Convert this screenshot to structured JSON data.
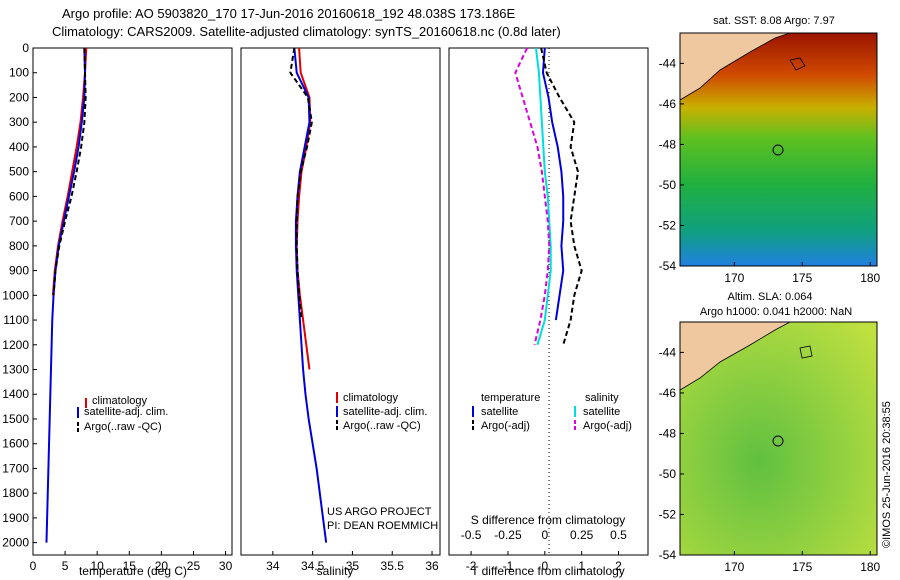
{
  "header": {
    "line1": "Argo profile: AO 5903820_170 17-Jun-2016 20160618_192 48.038S 173.186E",
    "line2": "Climatology: CARS2009. Satellite-adjusted climatology: synTS_20160618.nc (0.8d later)"
  },
  "colors": {
    "climatology": "#e00000",
    "satellite_temp": "#0000dd",
    "argo": "#000000",
    "satellite_sal": "#00dddd",
    "argo_sal": "#dd00dd"
  },
  "chart_data": [
    {
      "type": "line",
      "xlabel": "temperature (deg C)",
      "ylabel": "",
      "xlim": [
        0,
        31
      ],
      "ylim": [
        2050,
        0
      ],
      "xticks": [
        "0",
        "5",
        "10",
        "15",
        "20",
        "25",
        "30"
      ],
      "yticks": [
        "0",
        "100",
        "200",
        "300",
        "400",
        "500",
        "600",
        "700",
        "800",
        "900",
        "1000",
        "1100",
        "1200",
        "1300",
        "1400",
        "1500",
        "1600",
        "1700",
        "1800",
        "1900",
        "2000"
      ],
      "legend": [
        "climatology",
        "satellite-adj. clim.",
        "Argo(..raw -QC)"
      ],
      "series": [
        {
          "name": "climatology",
          "x": [
            8.3,
            8.1,
            7.8,
            7.4,
            6.8,
            6.1,
            5.4,
            4.6,
            3.9,
            3.4,
            3.1
          ],
          "y": [
            0,
            100,
            200,
            300,
            400,
            500,
            600,
            700,
            800,
            900,
            1000
          ]
        },
        {
          "name": "satellite-adj. clim.",
          "x": [
            8.0,
            8.1,
            8.0,
            7.6,
            7.1,
            6.4,
            5.6,
            4.8,
            4.0,
            3.5,
            3.2,
            3.0,
            2.9,
            2.8,
            2.7,
            2.6,
            2.5,
            2.4,
            2.3,
            2.2,
            2.1
          ],
          "y": [
            0,
            100,
            200,
            300,
            400,
            500,
            600,
            700,
            800,
            900,
            1000,
            1100,
            1200,
            1300,
            1400,
            1500,
            1600,
            1700,
            1800,
            1900,
            2000
          ]
        },
        {
          "name": "Argo(..raw -QC)",
          "x": [
            8.0,
            8.1,
            8.2,
            8.0,
            7.5,
            6.8,
            6.0,
            5.0,
            4.1,
            3.5,
            3.2
          ],
          "y": [
            0,
            100,
            200,
            300,
            400,
            500,
            600,
            700,
            800,
            900,
            1000
          ]
        }
      ]
    },
    {
      "type": "line",
      "xlabel": "salinity",
      "xlim": [
        33.6,
        36.1
      ],
      "ylim": [
        2050,
        0
      ],
      "xticks": [
        "34",
        "34.5",
        "35",
        "35.5",
        "36"
      ],
      "legend": [
        "climatology",
        "satellite-adj. clim.",
        "Argo(..raw -QC)"
      ],
      "annotation": [
        "US ARGO PROJECT",
        "PI: DEAN ROEMMICH"
      ],
      "series": [
        {
          "name": "climatology",
          "x": [
            34.33,
            34.35,
            34.46,
            34.47,
            34.42,
            34.36,
            34.33,
            34.31,
            34.3,
            34.31,
            34.34,
            34.38,
            34.42,
            34.46
          ],
          "y": [
            0,
            100,
            200,
            300,
            400,
            500,
            600,
            700,
            800,
            900,
            1000,
            1100,
            1200,
            1300
          ]
        },
        {
          "name": "satellite-adj. clim.",
          "x": [
            34.27,
            34.3,
            34.45,
            34.46,
            34.4,
            34.34,
            34.31,
            34.29,
            34.29,
            34.3,
            34.32,
            34.34,
            34.36,
            34.38,
            34.41,
            34.45,
            34.5,
            34.55,
            34.59,
            34.63,
            34.67
          ],
          "y": [
            0,
            100,
            200,
            300,
            400,
            500,
            600,
            700,
            800,
            900,
            1000,
            1100,
            1200,
            1300,
            1400,
            1500,
            1600,
            1700,
            1800,
            1900,
            2000
          ]
        },
        {
          "name": "Argo(..raw -QC)",
          "x": [
            34.27,
            34.22,
            34.44,
            34.49,
            34.43,
            34.35,
            34.31,
            34.3,
            34.3,
            34.31,
            34.33,
            34.36
          ],
          "y": [
            0,
            100,
            200,
            300,
            400,
            500,
            600,
            700,
            800,
            900,
            1000,
            1100
          ]
        }
      ]
    },
    {
      "type": "line",
      "xlabel": "T difference from climatology",
      "xlabel2": "S difference from climatology",
      "xlim": [
        -2.6,
        2.8
      ],
      "ylim": [
        2050,
        0
      ],
      "xticks": [
        "-2",
        "-1",
        "0",
        "1",
        "2"
      ],
      "xticks2": [
        "-0.5",
        "-0.25",
        "0",
        "0.25",
        "0.5"
      ],
      "legend_headers": [
        "temperature",
        "salinity"
      ],
      "legend": [
        "satellite",
        "Argo(-adj)",
        "satellite",
        "Argo(-adj)"
      ],
      "series": [
        {
          "name": "temperature satellite",
          "x": [
            0,
            -0.05,
            0.1,
            0.2,
            0.35,
            0.45,
            0.5,
            0.5,
            0.45,
            0.5,
            0.4,
            0.3
          ],
          "y": [
            0,
            100,
            200,
            300,
            400,
            500,
            600,
            700,
            800,
            900,
            1000,
            1100
          ]
        },
        {
          "name": "temperature Argo(-adj)",
          "x": [
            -0.1,
            0.05,
            0.4,
            0.8,
            0.7,
            0.9,
            0.8,
            0.7,
            0.8,
            1.0,
            0.8,
            0.7,
            0.5
          ],
          "y": [
            0,
            100,
            200,
            300,
            400,
            500,
            600,
            700,
            800,
            900,
            1000,
            1100,
            1200
          ]
        },
        {
          "name": "salinity satellite",
          "x": [
            -0.06,
            -0.04,
            -0.03,
            -0.02,
            -0.01,
            0,
            0.02,
            0.03,
            0.04,
            0.04,
            0.02,
            0,
            -0.05
          ],
          "y": [
            0,
            100,
            200,
            300,
            400,
            500,
            600,
            700,
            800,
            900,
            1000,
            1100,
            1200
          ]
        },
        {
          "name": "salinity Argo(-adj)",
          "x": [
            -0.12,
            -0.2,
            -0.15,
            -0.1,
            -0.05,
            -0.02,
            0,
            0.02,
            0.03,
            0.02,
            0,
            -0.03,
            -0.07
          ],
          "y": [
            0,
            100,
            200,
            300,
            400,
            500,
            600,
            700,
            800,
            900,
            1000,
            1100,
            1200
          ]
        }
      ]
    },
    {
      "type": "heatmap",
      "title": "sat. SST: 8.08 Argo: 7.97",
      "xticks": [
        "170",
        "175",
        "180"
      ],
      "yticks": [
        "-44",
        "-46",
        "-48",
        "-50",
        "-52",
        "-54"
      ],
      "xlim": [
        166,
        180.5
      ],
      "ylim": [
        -54,
        -42.5
      ],
      "marker": {
        "lon": 173.186,
        "lat": -48.038
      }
    },
    {
      "type": "heatmap",
      "title": "Altim. SLA: 0.064",
      "subtitle": "Argo h1000: 0.041 h2000: NaN",
      "xticks": [
        "170",
        "175",
        "180"
      ],
      "yticks": [
        "-44",
        "-46",
        "-48",
        "-50",
        "-52",
        "-54"
      ],
      "xlim": [
        166,
        180.5
      ],
      "ylim": [
        -54,
        -42.5
      ],
      "marker": {
        "lon": 173.186,
        "lat": -48.038
      }
    }
  ],
  "footer": {
    "stamp": "©IMOS 25-Jun-2016 20:38:55"
  }
}
